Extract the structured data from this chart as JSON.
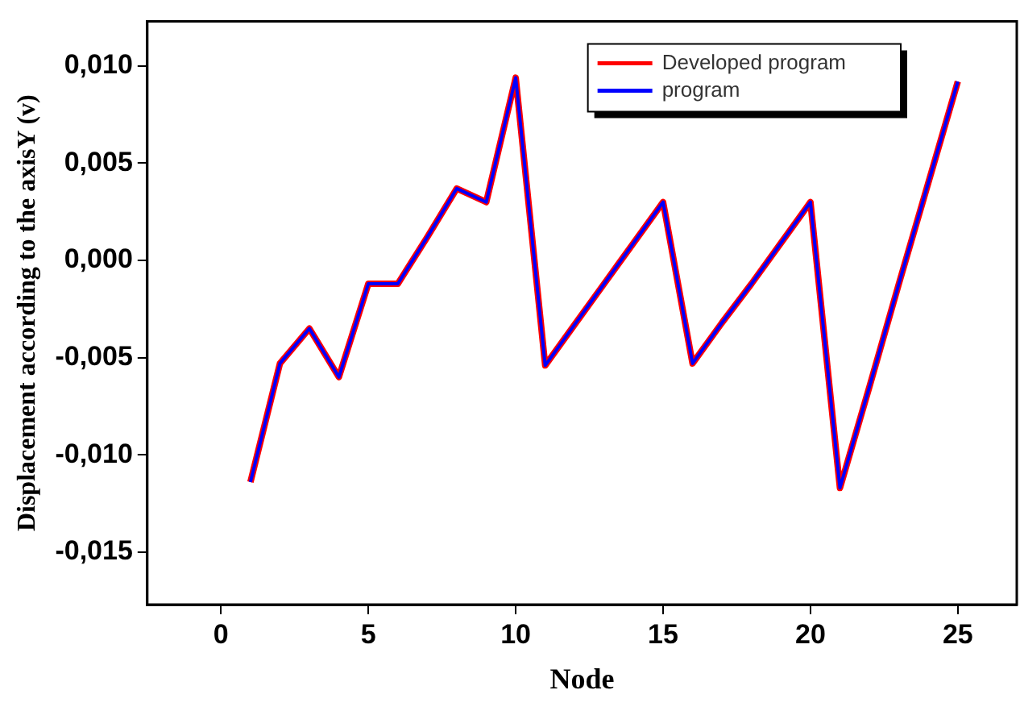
{
  "chart_data": {
    "type": "line",
    "xlabel": "Node",
    "ylabel": "Displacement according to the axisY (v)",
    "x": [
      1,
      2,
      3,
      4,
      5,
      6,
      7,
      8,
      9,
      10,
      11,
      12,
      13,
      14,
      15,
      16,
      17,
      18,
      19,
      20,
      21,
      22,
      23,
      24,
      25
    ],
    "series": [
      {
        "name": "Developed program",
        "color": "#ff0000",
        "values": [
          -0.0114,
          -0.0053,
          -0.0035,
          -0.006,
          -0.0012,
          -0.0012,
          0.0012,
          0.0037,
          0.003,
          0.0094,
          -0.0054,
          -0.0033,
          -0.0012,
          0.0009,
          0.003,
          -0.0053,
          -0.0032,
          -0.0012,
          0.0009,
          0.003,
          -0.0117,
          -0.0065,
          -0.0012,
          0.004,
          0.0092
        ]
      },
      {
        "name": "program",
        "color": "#0000ff",
        "values": [
          -0.0114,
          -0.0053,
          -0.0035,
          -0.006,
          -0.0012,
          -0.0012,
          0.0012,
          0.0037,
          0.003,
          0.0094,
          -0.0054,
          -0.0033,
          -0.0012,
          0.0009,
          0.003,
          -0.0053,
          -0.0032,
          -0.0012,
          0.0009,
          0.003,
          -0.0117,
          -0.0065,
          -0.0012,
          0.004,
          0.0092
        ]
      }
    ],
    "xlim": [
      -2.5,
      27
    ],
    "xticks": [
      0,
      5,
      10,
      15,
      20,
      25
    ],
    "ylim": [
      -0.0177,
      0.0123
    ],
    "yticks": [
      {
        "value": -0.015,
        "label": "-0,015"
      },
      {
        "value": -0.01,
        "label": "-0,010"
      },
      {
        "value": -0.005,
        "label": "-0,005"
      },
      {
        "value": 0,
        "label": "0,000"
      },
      {
        "value": 0.005,
        "label": "0,005"
      },
      {
        "value": 0.01,
        "label": "0,010"
      }
    ],
    "grid": false,
    "legend": "top right",
    "marker": "none",
    "line_style": "solid"
  }
}
